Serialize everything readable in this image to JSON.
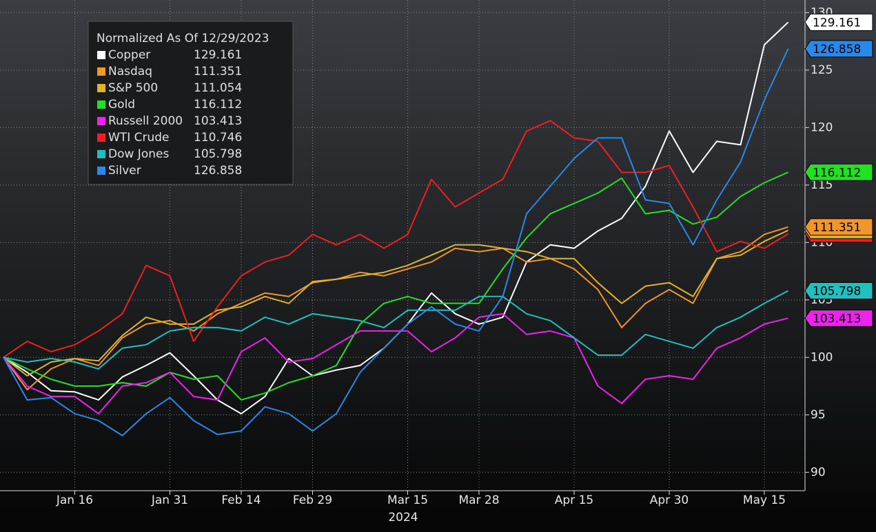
{
  "chart_data": {
    "type": "line",
    "legend_title": "Normalized As Of 12/29/2023",
    "xlabel": "2024",
    "categories": [
      null,
      null,
      null,
      "Jan 16",
      null,
      null,
      null,
      "Jan 31",
      null,
      null,
      "Feb 14",
      null,
      null,
      "Feb 29",
      null,
      null,
      null,
      "Mar 15",
      null,
      null,
      "Mar 28",
      null,
      null,
      null,
      "Apr 15",
      null,
      null,
      null,
      "Apr 30",
      null,
      null,
      null,
      "May 15",
      null
    ],
    "ylim": [
      88.4,
      131.1
    ],
    "yticks": [
      90,
      95,
      100,
      105,
      110,
      115,
      120,
      125,
      130
    ],
    "grid": true,
    "legend": "upper left",
    "series": [
      {
        "name": "Copper",
        "color": "#ffffff",
        "values": [
          100,
          98.7,
          97.1,
          97,
          96.3,
          98.3,
          99.3,
          100.4,
          98.4,
          96.3,
          95.1,
          96.6,
          99.9,
          98.4,
          98.9,
          99.3,
          100.8,
          102.9,
          105.6,
          103.8,
          102.9,
          103.5,
          108.3,
          109.8,
          109.5,
          111,
          112.1,
          114.9,
          119.7,
          116.1,
          118.8,
          118.5,
          127.2,
          129.161
        ]
      },
      {
        "name": "Nasdaq",
        "color": "#f0962a",
        "values": [
          100,
          97.2,
          99,
          99.9,
          99.3,
          101.7,
          102.9,
          103.2,
          102.3,
          103.8,
          104.7,
          105.6,
          105.3,
          106.5,
          106.8,
          107.4,
          107.1,
          107.7,
          108.3,
          109.5,
          109.2,
          109.5,
          108.3,
          108.6,
          107.7,
          105.9,
          102.6,
          104.7,
          105.9,
          104.7,
          108.6,
          109.2,
          110.7,
          111.351
        ]
      },
      {
        "name": "S&P 500",
        "color": "#e0b52a",
        "values": [
          100,
          98.4,
          99.6,
          99.9,
          99.7,
          101.9,
          103.5,
          102.9,
          102.9,
          104.1,
          104.4,
          105.3,
          104.7,
          106.6,
          106.8,
          107.1,
          107.4,
          108,
          108.9,
          109.8,
          109.8,
          109.5,
          109.2,
          108.6,
          108.6,
          106.5,
          104.7,
          106.2,
          106.5,
          105.3,
          108.6,
          108.9,
          110.1,
          111.054
        ]
      },
      {
        "name": "Gold",
        "color": "#22e022",
        "values": [
          100,
          99,
          98.1,
          97.5,
          97.5,
          97.8,
          97.5,
          98.7,
          98.1,
          98.4,
          96.3,
          96.9,
          97.8,
          98.4,
          99.3,
          102.9,
          104.7,
          105.3,
          104.7,
          104.7,
          104.7,
          107.7,
          110.4,
          112.5,
          113.4,
          114.3,
          115.6,
          112.5,
          112.8,
          111.6,
          112.2,
          114,
          115.2,
          116.112
        ]
      },
      {
        "name": "Russell 2000",
        "color": "#ee22ee",
        "values": [
          100,
          97.5,
          96.6,
          96.6,
          95.1,
          97.5,
          97.8,
          98.7,
          96.6,
          96.3,
          100.5,
          101.7,
          99.6,
          99.9,
          101.1,
          102.3,
          102.3,
          102.3,
          100.5,
          101.7,
          103.5,
          103.8,
          102,
          102.3,
          101.7,
          97.5,
          96,
          98.1,
          98.4,
          98.1,
          100.8,
          101.7,
          102.9,
          103.413
        ]
      },
      {
        "name": "WTI Crude",
        "color": "#ee2020",
        "values": [
          100,
          101.4,
          100.5,
          101.1,
          102.3,
          103.8,
          108,
          107.1,
          101.4,
          104.4,
          107.1,
          108.3,
          108.9,
          110.7,
          109.8,
          110.7,
          109.5,
          110.7,
          115.5,
          113.1,
          114.3,
          115.5,
          119.7,
          120.6,
          119.1,
          118.8,
          116.1,
          116.1,
          116.7,
          113.1,
          109.2,
          110.1,
          109.5,
          110.746
        ]
      },
      {
        "name": "Dow Jones",
        "color": "#20c0c0",
        "values": [
          100,
          99.6,
          99.9,
          99.6,
          99,
          100.8,
          101.1,
          102.3,
          102.6,
          102.6,
          102.3,
          103.5,
          102.9,
          103.8,
          103.5,
          103.2,
          102.6,
          104.1,
          104.1,
          104.1,
          105.3,
          105.3,
          103.8,
          103.2,
          101.7,
          100.2,
          100.2,
          102,
          101.4,
          100.8,
          102.6,
          103.5,
          104.7,
          105.798
        ]
      },
      {
        "name": "Silver",
        "color": "#2a88e8",
        "values": [
          100,
          96.3,
          96.5,
          95.1,
          94.5,
          93.2,
          95.1,
          96.5,
          94.5,
          93.3,
          93.6,
          95.7,
          95.1,
          93.6,
          95.1,
          98.7,
          100.8,
          102.9,
          104.4,
          102.9,
          102.3,
          105.3,
          112.5,
          114.9,
          117.3,
          119.1,
          119.1,
          113.7,
          113.4,
          109.8,
          113.7,
          117,
          122.4,
          126.858
        ]
      }
    ]
  }
}
